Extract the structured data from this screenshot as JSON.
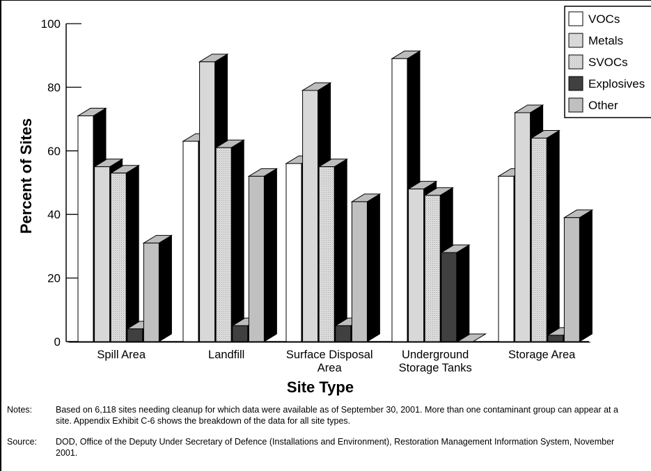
{
  "chart_data": {
    "type": "bar",
    "xlabel": "Site Type",
    "ylabel": "Percent of Sites",
    "ylim": [
      0,
      100
    ],
    "yticks": [
      0,
      20,
      40,
      60,
      80,
      100
    ],
    "categories": [
      [
        "Spill Area"
      ],
      [
        "Landfill"
      ],
      [
        "Surface Disposal",
        "Area"
      ],
      [
        "Underground",
        "Storage Tanks"
      ],
      [
        "Storage Area"
      ]
    ],
    "series": [
      {
        "name": "VOCs",
        "values": [
          71,
          63,
          56,
          89,
          52
        ]
      },
      {
        "name": "Metals",
        "values": [
          55,
          88,
          79,
          48,
          72
        ]
      },
      {
        "name": "SVOCs",
        "values": [
          53,
          61,
          55,
          46,
          64
        ]
      },
      {
        "name": "Explosives",
        "values": [
          4,
          5,
          5,
          28,
          2
        ]
      },
      {
        "name": "Other",
        "values": [
          31,
          52,
          44,
          0,
          39
        ]
      }
    ],
    "legend_position": "top-right",
    "grid": false,
    "bar_style": "3d",
    "colors": {
      "VOCs": "#ffffff",
      "Metals": "#d8d8d8",
      "SVOCs": "#e4e4e4",
      "Explosives": "#404040",
      "Other": "#c0c0c0",
      "side": "#000000",
      "top": "#bdbdbd"
    }
  },
  "notes": {
    "label": "Notes:",
    "text": "Based on 6,118 sites needing cleanup for which data were available as of September 30, 2001. More than one contaminant group can appear at a site. Appendix Exhibit C-6 shows the breakdown of the data for all site types."
  },
  "source": {
    "label": "Source:",
    "text": "DOD, Office of the Deputy Under Secretary of Defence (Installations and Environment), Restoration Management Information System, November 2001."
  }
}
